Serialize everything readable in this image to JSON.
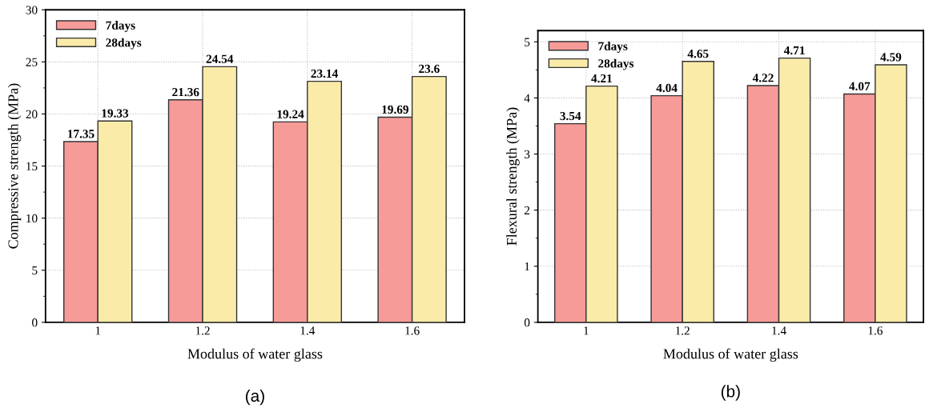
{
  "chart_data": [
    {
      "type": "bar",
      "xlabel": "Modulus of water glass",
      "ylabel": "Compressive strength (MPa)",
      "categories": [
        "1",
        "1.2",
        "1.4",
        "1.6"
      ],
      "series": [
        {
          "name": "7days",
          "color": "#f79b98",
          "values": [
            17.35,
            21.36,
            19.24,
            19.69
          ]
        },
        {
          "name": "28days",
          "color": "#faeba9",
          "values": [
            19.33,
            24.54,
            23.14,
            23.6
          ]
        }
      ],
      "ylim": [
        0,
        30
      ],
      "yticks": [
        0,
        5,
        10,
        15,
        20,
        25,
        30
      ],
      "grid": true,
      "legend": "top left",
      "data_labels": true,
      "annotations": [
        "(a)"
      ]
    },
    {
      "type": "bar",
      "xlabel": "Modulus of water glass",
      "ylabel": "Flexural strength (MPa)",
      "categories": [
        "1",
        "1.2",
        "1.4",
        "1.6"
      ],
      "series": [
        {
          "name": "7days",
          "color": "#f79b98",
          "values": [
            3.54,
            4.04,
            4.22,
            4.07
          ]
        },
        {
          "name": "28days",
          "color": "#faeba9",
          "values": [
            4.21,
            4.65,
            4.71,
            4.59
          ]
        }
      ],
      "ylim": [
        0,
        5.2
      ],
      "yticks": [
        0,
        1,
        2,
        3,
        4,
        5
      ],
      "grid": true,
      "legend": "top left",
      "data_labels": true,
      "annotations": [
        "(b)"
      ]
    }
  ]
}
